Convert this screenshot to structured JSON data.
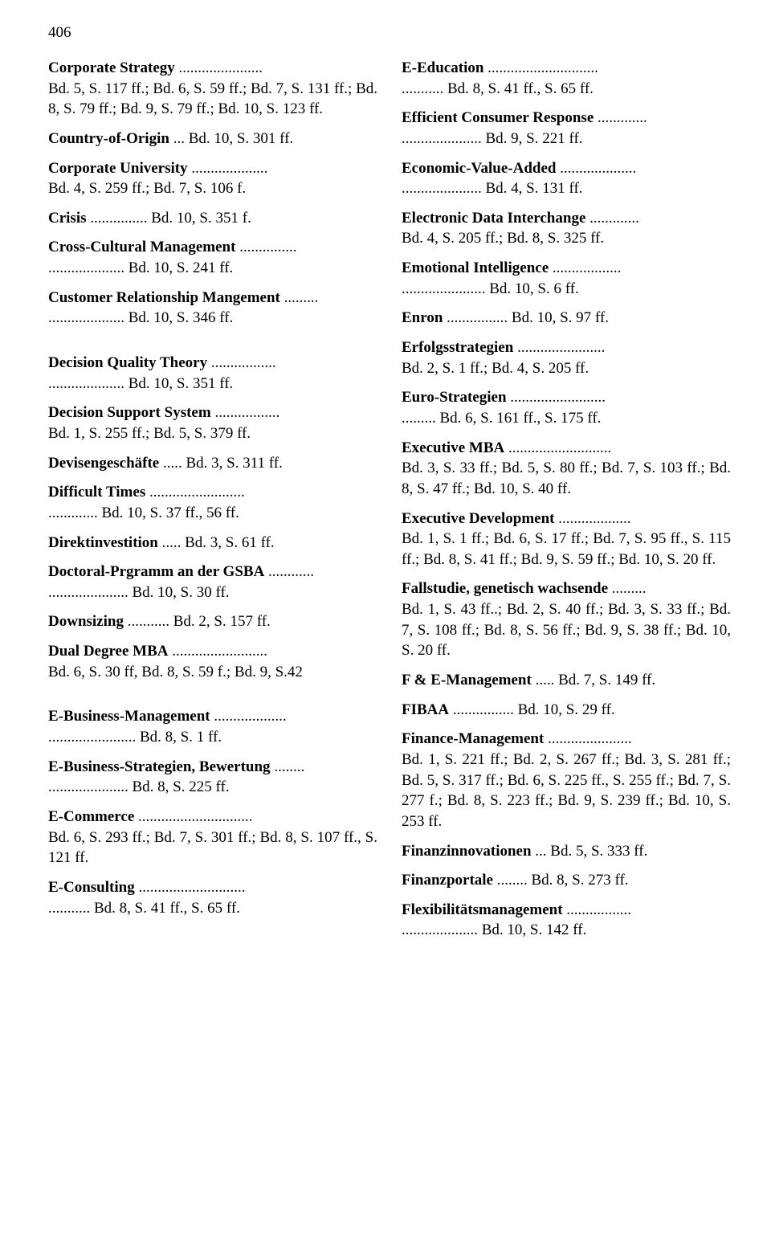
{
  "page_number": "406",
  "left_column": [
    {
      "term": "Corporate Strategy",
      "refs": "Bd. 5, S. 117 ff.; Bd. 6, S. 59 ff.; Bd. 7, S. 131 ff.; Bd. 8, S. 79 ff.; Bd. 9, S. 79 ff.; Bd. 10, S. 123 ff.",
      "gap": false
    },
    {
      "term": "Country-of-Origin",
      "refs": "Bd. 10, S. 301 ff.",
      "gap": false,
      "inline": true
    },
    {
      "term": "Corporate University",
      "refs": "Bd. 4, S. 259 ff.; Bd. 7, S. 106 f.",
      "gap": false
    },
    {
      "term": "Crisis",
      "refs": "Bd. 10, S. 351 f.",
      "gap": false,
      "inline": true
    },
    {
      "term": "Cross-Cultural Management",
      "refs": "Bd. 10, S. 241 ff.",
      "gap": false
    },
    {
      "term": "Customer Relationship Mangement",
      "refs": "Bd. 10, S. 346 ff.",
      "gap": true
    },
    {
      "term": "Decision Quality Theory",
      "refs": "Bd. 10, S. 351 ff.",
      "gap": false
    },
    {
      "term": "Decision Support System",
      "refs": "Bd. 1, S. 255 ff.; Bd. 5, S. 379 ff.",
      "gap": false
    },
    {
      "term": "Devisengeschäfte",
      "refs": "Bd. 3, S. 311 ff.",
      "gap": false,
      "inline": true
    },
    {
      "term": "Difficult Times",
      "refs": "Bd. 10, S. 37 ff., 56 ff.",
      "gap": false
    },
    {
      "term": "Direktinvestition",
      "refs": "Bd. 3, S. 61 ff.",
      "gap": false,
      "inline": true
    },
    {
      "term": "Doctoral-Prgramm an der GSBA",
      "refs": "Bd. 10, S. 30 ff.",
      "gap": false
    },
    {
      "term": "Downsizing",
      "refs": "Bd. 2, S. 157 ff.",
      "gap": false,
      "inline": true
    },
    {
      "term": "Dual Degree MBA",
      "refs": "Bd. 6, S. 30 ff, Bd. 8, S. 59 f.; Bd. 9, S.42",
      "gap": true
    },
    {
      "term": "E-Business-Management",
      "refs": "Bd. 8, S. 1 ff.",
      "gap": false
    },
    {
      "term": "E-Business-Strategien, Bewertung",
      "refs": "Bd. 8, S. 225 ff.",
      "gap": false
    },
    {
      "term": "E-Commerce",
      "refs": "Bd. 6, S. 293 ff.; Bd. 7, S. 301 ff.; Bd. 8, S. 107 ff., S. 121 ff.",
      "gap": false
    },
    {
      "term": "E-Consulting",
      "refs": "Bd. 8, S. 41 ff., S. 65 ff.",
      "gap": false
    }
  ],
  "right_column": [
    {
      "term": "E-Education",
      "refs": "Bd. 8, S. 41 ff., S. 65 ff.",
      "gap": false
    },
    {
      "term": "Efficient Consumer Response",
      "refs": "Bd. 9, S. 221 ff.",
      "gap": false
    },
    {
      "term": "Economic-Value-Added",
      "refs": "Bd. 4, S. 131 ff.",
      "gap": false
    },
    {
      "term": "Electronic Data Interchange",
      "refs": "Bd. 4, S. 205 ff.; Bd. 8, S. 325 ff.",
      "gap": false
    },
    {
      "term": "Emotional Intelligence",
      "refs": "Bd. 10, S. 6 ff.",
      "gap": false
    },
    {
      "term": "Enron",
      "refs": "Bd. 10, S. 97 ff.",
      "gap": false,
      "inline": true
    },
    {
      "term": "Erfolgsstrategien",
      "refs": "Bd. 2, S. 1 ff.; Bd. 4, S. 205 ff.",
      "gap": false
    },
    {
      "term": "Euro-Strategien",
      "refs": "Bd. 6, S. 161 ff., S. 175 ff.",
      "gap": false
    },
    {
      "term": "Executive MBA",
      "refs": "Bd. 3, S. 33 ff.; Bd. 5, S. 80 ff.; Bd. 7, S. 103 ff.; Bd. 8, S. 47 ff.; Bd. 10, S. 40 ff.",
      "gap": false
    },
    {
      "term": "Executive Development",
      "refs": "Bd. 1, S. 1 ff.; Bd. 6, S. 17 ff.; Bd. 7, S. 95 ff., S. 115 ff.; Bd. 8, S. 41 ff.; Bd. 9, S. 59 ff.; Bd. 10, S. 20 ff.",
      "gap": false
    },
    {
      "term": "Fallstudie, genetisch wachsende",
      "refs": "Bd. 1, S. 43 ff..; Bd. 2, S. 40 ff.; Bd. 3, S. 33 ff.; Bd. 7, S. 108 ff.; Bd. 8, S. 56 ff.; Bd. 9, S. 38 ff.; Bd. 10, S. 20 ff.",
      "gap": false
    },
    {
      "term": "F & E-Management",
      "refs": "Bd. 7, S. 149 ff.",
      "gap": false,
      "inline": true
    },
    {
      "term": "FIBAA",
      "refs": "Bd. 10, S. 29 ff.",
      "gap": false,
      "inline": true
    },
    {
      "term": "Finance-Management",
      "refs": "Bd. 1, S. 221 ff.; Bd. 2, S. 267 ff.; Bd. 3, S. 281 ff.; Bd. 5, S. 317 ff.; Bd. 6, S. 225 ff., S. 255 ff.; Bd. 7, S. 277 f.; Bd. 8, S. 223 ff.; Bd. 9, S. 239 ff.; Bd. 10, S. 253 ff.",
      "gap": false
    },
    {
      "term": "Finanzinnovationen",
      "refs": "Bd. 5, S. 333 ff.",
      "gap": false,
      "inline": true
    },
    {
      "term": "Finanzportale",
      "refs": "Bd. 8, S. 273 ff.",
      "gap": false,
      "inline": true
    },
    {
      "term": "Flexibilitätsmanagement",
      "refs": "Bd. 10, S. 142 ff.",
      "gap": false
    }
  ]
}
